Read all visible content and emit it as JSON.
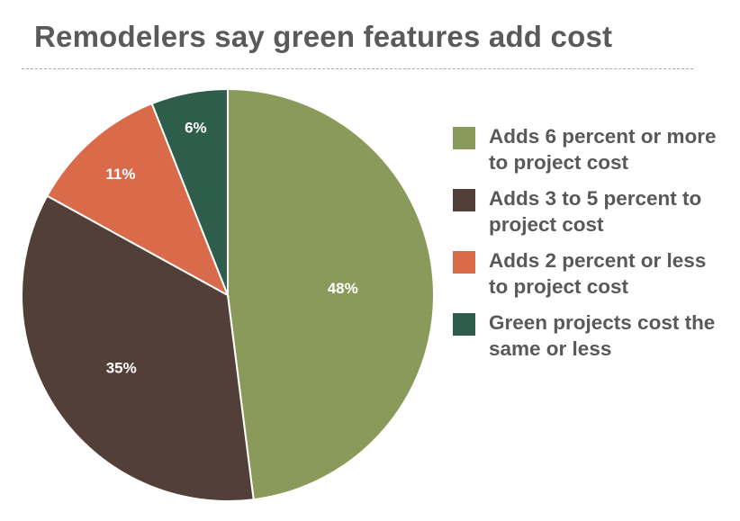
{
  "chart_data": {
    "type": "pie",
    "title": "Remodelers say green features add cost",
    "slices": [
      {
        "label": "Adds 6 percent or more to project cost",
        "value": 48,
        "display": "48%",
        "color": "#8a9a5b"
      },
      {
        "label": "Adds 3 to 5 percent to project cost",
        "value": 35,
        "display": "35%",
        "color": "#523f37"
      },
      {
        "label": "Adds 2 percent or less to project cost",
        "value": 11,
        "display": "11%",
        "color": "#d96b4b"
      },
      {
        "label": "Green projects cost the same or less",
        "value": 6,
        "display": "6%",
        "color": "#2e5e4b"
      }
    ],
    "start": "12 o'clock",
    "direction": "clockwise",
    "legend": "right"
  }
}
